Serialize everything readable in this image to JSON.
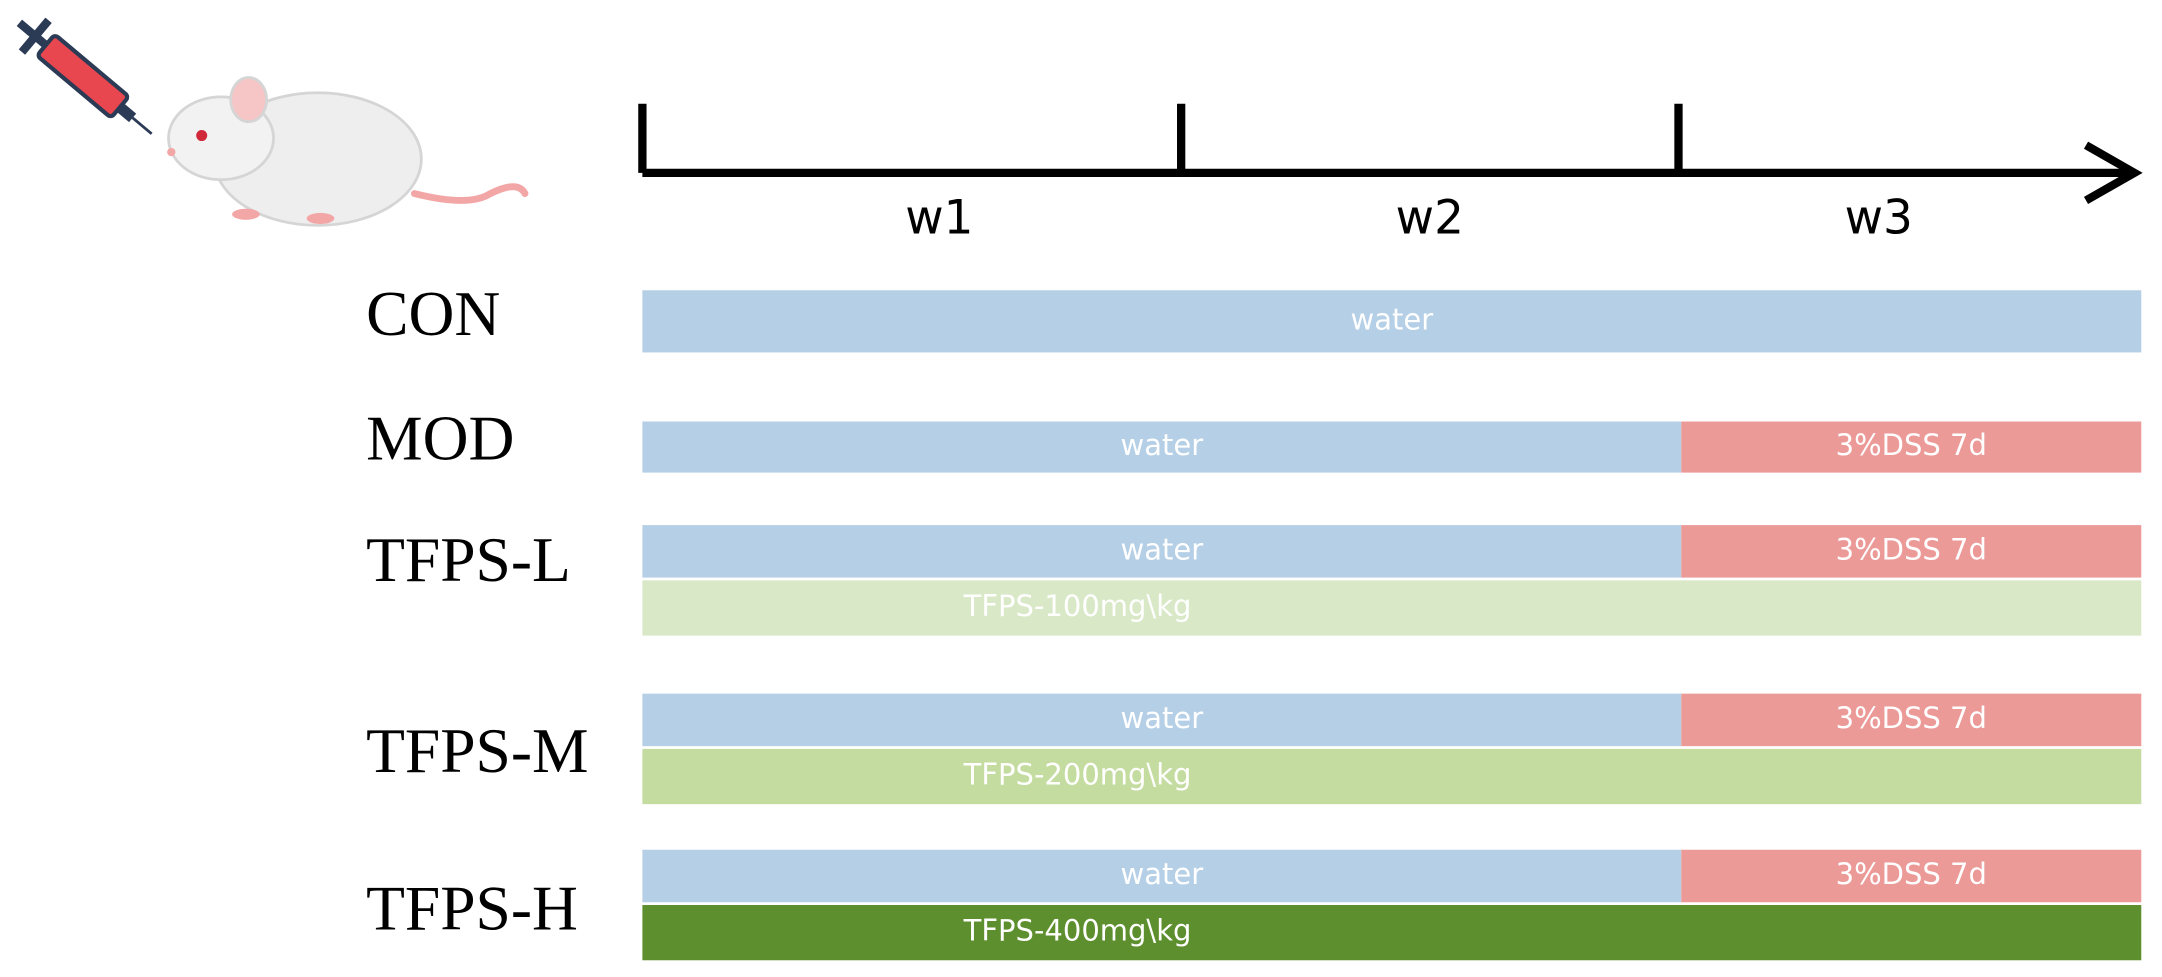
{
  "timeline": {
    "weeks": [
      "w1",
      "w2",
      "w3"
    ]
  },
  "groups": [
    {
      "name": "CON",
      "bars": [
        "water"
      ]
    },
    {
      "name": "MOD",
      "bars": [
        "water",
        "3%DSS 7d"
      ]
    },
    {
      "name": "TFPS-L",
      "bars": [
        "water",
        "3%DSS 7d",
        "TFPS-100mg\\kg"
      ]
    },
    {
      "name": "TFPS-M",
      "bars": [
        "water",
        "3%DSS 7d",
        "TFPS-200mg\\kg"
      ]
    },
    {
      "name": "TFPS-H",
      "bars": [
        "water",
        "3%DSS 7d",
        "TFPS-400mg\\kg"
      ]
    }
  ]
}
